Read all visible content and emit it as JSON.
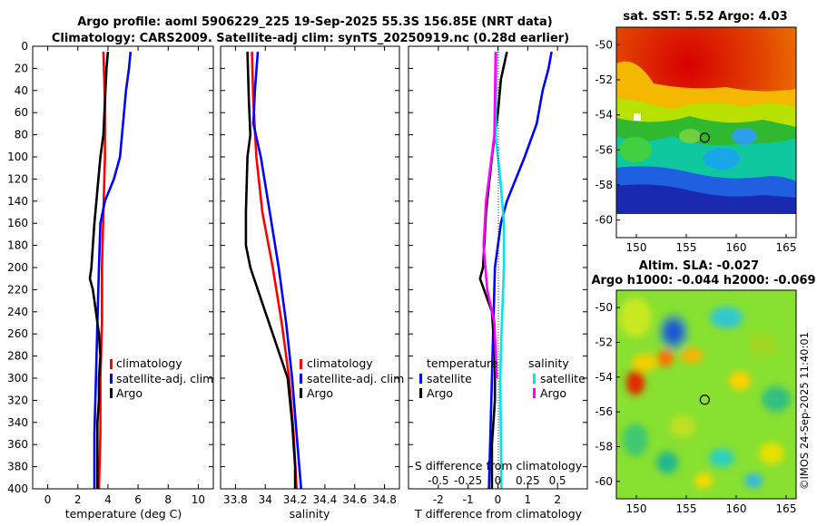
{
  "title_line1": "Argo profile: aoml 5906229_225 19-Sep-2025 55.3S 156.85E (NRT data)",
  "title_line2": "Climatology: CARS2009. Satellite-adj clim: synTS_20250919.nc (0.28d earlier)",
  "watermark": "©IMOS 24-Sep-2025 11:40:01",
  "colors": {
    "climatology": "#ff0000",
    "satellite": "#0000ff",
    "argo": "#000000",
    "sal_satellite": "#00e5ee",
    "sal_argo": "#ff00ff"
  },
  "chart_data": [
    {
      "id": "temperature",
      "type": "line",
      "xlabel": "temperature (deg C)",
      "xlim": [
        -1,
        11
      ],
      "xticks": [
        0,
        2,
        4,
        6,
        8,
        10
      ],
      "ylim": [
        400,
        0
      ],
      "yticks": [
        0,
        20,
        40,
        60,
        80,
        100,
        120,
        140,
        160,
        180,
        200,
        220,
        240,
        260,
        280,
        300,
        320,
        340,
        360,
        380,
        400
      ],
      "legend": [
        "climatology",
        "satellite-adj. clim",
        "Argo"
      ],
      "series": [
        {
          "name": "climatology",
          "color": "#ff0000",
          "depth": [
            5,
            50,
            100,
            150,
            200,
            250,
            300,
            350,
            400
          ],
          "values": [
            3.7,
            3.8,
            3.8,
            3.7,
            3.6,
            3.6,
            3.5,
            3.5,
            3.4
          ]
        },
        {
          "name": "satellite-adj. clim",
          "color": "#0000ff",
          "depth": [
            5,
            20,
            40,
            70,
            100,
            120,
            140,
            160,
            200,
            250,
            300,
            350,
            400
          ],
          "values": [
            5.5,
            5.4,
            5.2,
            5.0,
            4.8,
            4.4,
            3.8,
            3.5,
            3.4,
            3.3,
            3.2,
            3.1,
            3.1
          ]
        },
        {
          "name": "Argo",
          "color": "#000000",
          "depth": [
            5,
            20,
            50,
            80,
            100,
            130,
            160,
            180,
            200,
            210,
            220,
            240,
            260,
            280,
            300,
            320,
            340,
            360,
            380,
            400
          ],
          "values": [
            4.0,
            3.9,
            3.8,
            3.7,
            3.5,
            3.3,
            3.1,
            3.0,
            2.9,
            2.8,
            3.0,
            3.2,
            3.4,
            3.5,
            3.4,
            3.4,
            3.3,
            3.3,
            3.3,
            3.3
          ]
        }
      ]
    },
    {
      "id": "salinity",
      "type": "line",
      "xlabel": "salinity",
      "xlim": [
        33.7,
        34.9
      ],
      "xticks": [
        33.8,
        34,
        34.2,
        34.4,
        34.6,
        34.8
      ],
      "ylim": [
        400,
        0
      ],
      "legend": [
        "climatology",
        "satellite-adj. clim",
        "Argo"
      ],
      "series": [
        {
          "name": "climatology",
          "color": "#ff0000",
          "depth": [
            5,
            50,
            100,
            150,
            200,
            250,
            300,
            350,
            400
          ],
          "values": [
            33.91,
            33.92,
            33.94,
            33.98,
            34.05,
            34.11,
            34.16,
            34.19,
            34.21
          ]
        },
        {
          "name": "satellite-adj. clim",
          "color": "#0000ff",
          "depth": [
            5,
            40,
            70,
            100,
            150,
            200,
            250,
            300,
            350,
            400
          ],
          "values": [
            33.95,
            33.93,
            33.92,
            33.97,
            34.03,
            34.09,
            34.14,
            34.18,
            34.21,
            34.24
          ]
        },
        {
          "name": "Argo",
          "color": "#000000",
          "depth": [
            5,
            50,
            80,
            100,
            150,
            180,
            200,
            220,
            240,
            260,
            280,
            300,
            340,
            380,
            400
          ],
          "values": [
            33.88,
            33.89,
            33.9,
            33.88,
            33.87,
            33.87,
            33.9,
            33.95,
            34.0,
            34.05,
            34.1,
            34.15,
            34.18,
            34.2,
            34.2
          ]
        }
      ]
    },
    {
      "id": "difference",
      "type": "line",
      "xlabel": "T difference from climatology",
      "xlabel_top": "S difference from climatology",
      "xlim": [
        -3,
        3
      ],
      "xticks": [
        -2,
        -1,
        0,
        1,
        2
      ],
      "xticks_top": [
        -0.5,
        -0.25,
        0,
        0.25,
        0.5
      ],
      "ylim": [
        400,
        0
      ],
      "legend_titles": [
        "temperature",
        "salinity"
      ],
      "legend": [
        "satellite",
        "Argo",
        "satellite",
        "Argo"
      ],
      "series": [
        {
          "name": "T satellite",
          "color": "#0000ff",
          "depth": [
            5,
            20,
            40,
            70,
            100,
            120,
            140,
            160,
            200,
            300,
            400
          ],
          "values": [
            1.8,
            1.7,
            1.5,
            1.3,
            0.9,
            0.6,
            0.3,
            0.1,
            -0.1,
            -0.2,
            -0.3
          ]
        },
        {
          "name": "T Argo",
          "color": "#000000",
          "depth": [
            5,
            30,
            60,
            100,
            150,
            200,
            210,
            240,
            280,
            320,
            360,
            400
          ],
          "values": [
            0.3,
            0.1,
            0.0,
            -0.2,
            -0.4,
            -0.5,
            -0.6,
            -0.2,
            -0.1,
            -0.1,
            -0.2,
            -0.2
          ]
        },
        {
          "name": "S satellite",
          "color": "#00e5ee",
          "depth": [
            5,
            80,
            120,
            160,
            200,
            260,
            300,
            400
          ],
          "values": [
            -0.01,
            -0.02,
            0.02,
            0.05,
            0.05,
            0.03,
            0.02,
            0.03
          ]
        },
        {
          "name": "S Argo",
          "color": "#ff00ff",
          "depth": [
            5,
            80,
            140,
            180,
            220,
            250,
            300
          ],
          "values": [
            -0.02,
            -0.03,
            -0.1,
            -0.12,
            -0.09,
            -0.03,
            -0.01
          ]
        }
      ]
    },
    {
      "id": "sst-map",
      "type": "heatmap",
      "title": "sat. SST: 5.52 Argo: 4.03",
      "xlim": [
        148,
        166
      ],
      "ylim": [
        -61,
        -49
      ],
      "xticks": [
        150,
        155,
        160,
        165
      ],
      "yticks": [
        -50,
        -52,
        -54,
        -56,
        -58,
        -60
      ],
      "argo_lon": 156.85,
      "argo_lat": -55.3
    },
    {
      "id": "sla-map",
      "type": "heatmap",
      "title_line1": "Altim. SLA: -0.027",
      "title_line2": "Argo h1000: -0.044 h2000: -0.069",
      "xlim": [
        148,
        166
      ],
      "ylim": [
        -61,
        -49
      ],
      "xticks": [
        150,
        155,
        160,
        165
      ],
      "yticks": [
        -50,
        -52,
        -54,
        -56,
        -58,
        -60
      ],
      "argo_lon": 156.85,
      "argo_lat": -55.3
    }
  ]
}
